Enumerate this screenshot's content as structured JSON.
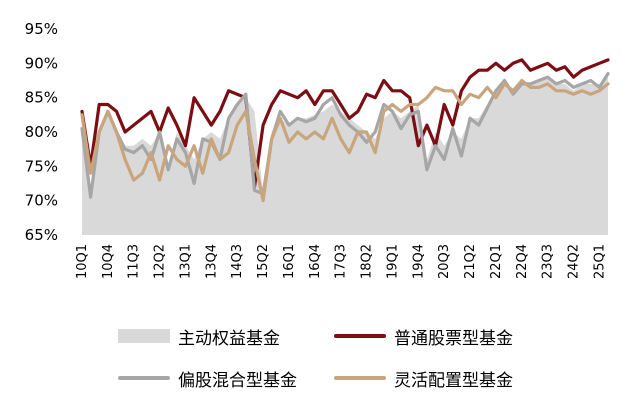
{
  "chart_data": {
    "type": "area",
    "y_unit": "%",
    "ylim": [
      65,
      95
    ],
    "y_ticks": [
      "65%",
      "70%",
      "75%",
      "80%",
      "85%",
      "90%",
      "95%"
    ],
    "y_tick_values": [
      65,
      70,
      75,
      80,
      85,
      90,
      95
    ],
    "x": [
      "10Q1",
      "10Q2",
      "10Q3",
      "10Q4",
      "11Q1",
      "11Q2",
      "11Q3",
      "11Q4",
      "12Q1",
      "12Q2",
      "12Q3",
      "12Q4",
      "13Q1",
      "13Q2",
      "13Q3",
      "13Q4",
      "14Q1",
      "14Q2",
      "14Q3",
      "14Q4",
      "15Q1",
      "15Q2",
      "15Q3",
      "15Q4",
      "16Q1",
      "16Q2",
      "16Q3",
      "16Q4",
      "17Q1",
      "17Q2",
      "17Q3",
      "17Q4",
      "18Q1",
      "18Q2",
      "18Q3",
      "18Q4",
      "19Q1",
      "19Q2",
      "19Q3",
      "19Q4",
      "20Q1",
      "20Q2",
      "20Q3",
      "20Q4",
      "21Q1",
      "21Q2",
      "21Q3",
      "21Q4",
      "22Q1",
      "22Q2",
      "22Q3",
      "22Q4",
      "23Q1",
      "23Q2",
      "23Q3",
      "23Q4",
      "24Q1",
      "24Q2",
      "24Q3",
      "24Q4",
      "25Q1",
      "25Q2"
    ],
    "x_tick_labels": [
      "10Q1",
      "10Q4",
      "11Q3",
      "12Q2",
      "13Q1",
      "13Q4",
      "14Q3",
      "15Q2",
      "16Q1",
      "16Q4",
      "17Q3",
      "18Q2",
      "19Q1",
      "19Q4",
      "20Q3",
      "21Q2",
      "22Q1",
      "22Q4",
      "23Q3",
      "24Q2",
      "25Q1"
    ],
    "grid": false,
    "legend_position": "bottom",
    "series": [
      {
        "name": "主动权益基金",
        "kind": "area",
        "color": "#d9d9d9",
        "values": [
          80.5,
          71.5,
          80.5,
          83,
          80,
          78,
          78,
          79,
          78,
          80,
          75,
          80,
          78,
          76,
          79,
          80,
          79,
          82,
          84,
          85,
          83,
          71,
          80,
          82,
          81,
          82,
          82,
          82.5,
          83,
          84,
          83,
          82,
          81,
          80,
          79,
          82,
          83,
          82,
          83,
          84,
          76,
          80,
          78,
          80,
          79,
          82,
          82,
          84,
          86,
          87.5,
          86,
          87,
          87,
          87.5,
          88,
          87,
          87,
          86,
          87,
          87,
          87,
          88
        ]
      },
      {
        "name": "普通股票型基金",
        "kind": "line",
        "color": "#7b0e13",
        "values": [
          83,
          75,
          84,
          84,
          83,
          80,
          81,
          82,
          83,
          80,
          83.5,
          81,
          78,
          85,
          83,
          81,
          83,
          86,
          85.5,
          85,
          72,
          81,
          84,
          86,
          85.5,
          85,
          86,
          84,
          86,
          86,
          84,
          82,
          83,
          85.5,
          85,
          87.5,
          86,
          86,
          85,
          78,
          81,
          78,
          84,
          81,
          86,
          88,
          89,
          89,
          90,
          89,
          90,
          90.5,
          89,
          89.5,
          90,
          89,
          89.5,
          88,
          89,
          89.5,
          90,
          90.5
        ]
      },
      {
        "name": "偏股混合型基金",
        "kind": "line",
        "color": "#a6a6a6",
        "values": [
          80.5,
          70.5,
          80,
          83,
          80,
          77.5,
          77,
          78,
          76,
          80,
          74.5,
          79,
          77,
          72.5,
          79,
          78.5,
          76,
          82,
          84,
          85.5,
          71.5,
          71,
          79,
          83,
          81,
          82,
          81.5,
          82,
          84,
          85,
          82.5,
          81,
          80,
          78.5,
          80,
          84,
          83,
          80.5,
          82.5,
          83,
          74.5,
          78,
          76,
          80.5,
          76.5,
          82,
          81,
          83.5,
          86,
          87.5,
          85.5,
          87,
          87,
          87.5,
          88,
          87,
          87.5,
          86.5,
          87,
          87.5,
          86.5,
          88.5
        ]
      },
      {
        "name": "灵活配置型基金",
        "kind": "line",
        "color": "#c9a57e",
        "values": [
          82.5,
          74,
          80,
          83,
          80,
          76,
          73,
          74,
          77,
          73,
          78,
          76,
          75,
          78,
          74,
          79,
          76,
          77,
          81,
          83,
          76,
          70,
          79,
          82,
          78.5,
          80,
          79,
          80,
          79,
          82,
          79,
          77,
          80,
          80,
          77,
          83,
          84,
          83,
          84,
          84,
          85,
          86.5,
          86,
          86,
          84,
          85.5,
          85,
          86.5,
          85,
          87,
          86,
          87.5,
          86.5,
          86.5,
          87,
          86,
          86,
          85.5,
          86,
          85.5,
          86,
          87
        ]
      }
    ]
  }
}
